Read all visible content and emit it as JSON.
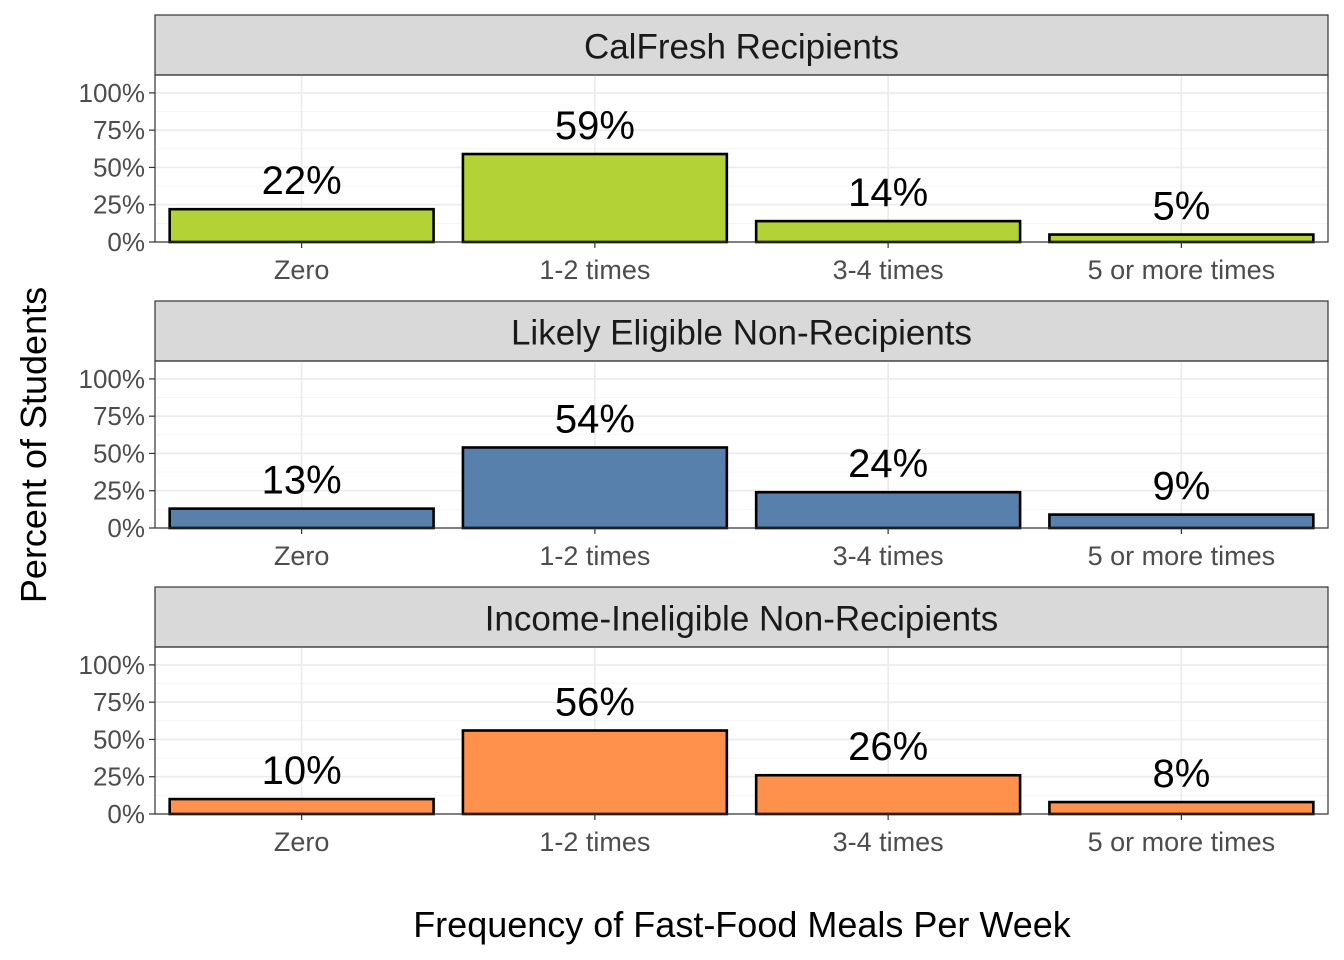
{
  "chart_data": {
    "type": "bar",
    "xlabel": "Frequency of Fast-Food Meals Per Week",
    "ylabel": "Percent of Students",
    "categories": [
      "Zero",
      "1-2 times",
      "3-4 times",
      "5 or more times"
    ],
    "ylim": [
      0,
      100
    ],
    "yticks": [
      0,
      25,
      50,
      75,
      100
    ],
    "ytick_labels": [
      "0%",
      "25%",
      "50%",
      "75%",
      "100%"
    ],
    "grid": true,
    "legend": "none",
    "facets": [
      {
        "name": "CalFresh Recipients",
        "color": "#b2d235",
        "values": [
          22,
          59,
          14,
          5
        ],
        "labels": [
          "22%",
          "59%",
          "14%",
          "5%"
        ]
      },
      {
        "name": "Likely Eligible Non-Recipients",
        "color": "#5880ac",
        "values": [
          13,
          54,
          24,
          9
        ],
        "labels": [
          "13%",
          "54%",
          "24%",
          "9%"
        ]
      },
      {
        "name": "Income-Ineligible Non-Recipients",
        "color": "#ff914d",
        "values": [
          10,
          56,
          26,
          8
        ],
        "labels": [
          "10%",
          "56%",
          "26%",
          "8%"
        ]
      }
    ]
  }
}
